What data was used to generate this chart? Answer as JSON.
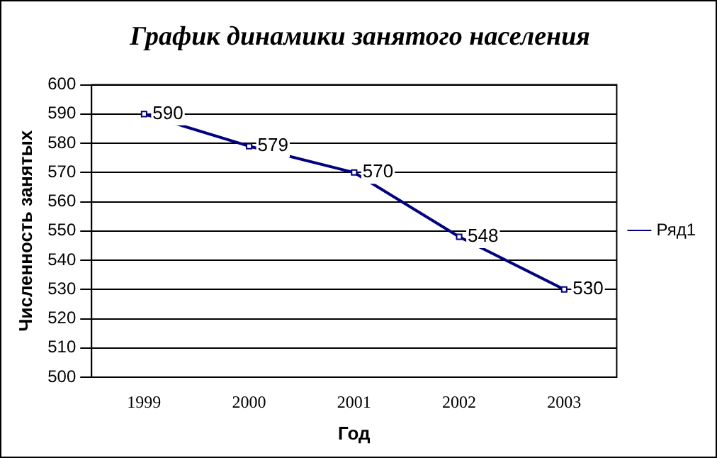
{
  "chart_data": {
    "type": "line",
    "title": "График динамики занятого населения",
    "xlabel": "Год",
    "ylabel": "Численность занятых",
    "categories": [
      "1999",
      "2000",
      "2001",
      "2002",
      "2003"
    ],
    "series": [
      {
        "name": "Ряд1",
        "color": "#000080",
        "values": [
          590,
          579,
          570,
          548,
          530
        ]
      }
    ],
    "ylim": [
      500,
      600
    ],
    "yticks": [
      500,
      510,
      520,
      530,
      540,
      550,
      560,
      570,
      580,
      590,
      600
    ],
    "grid": "y",
    "legend": "right",
    "marker": "square",
    "line_style": "solid",
    "data_labels": true
  }
}
